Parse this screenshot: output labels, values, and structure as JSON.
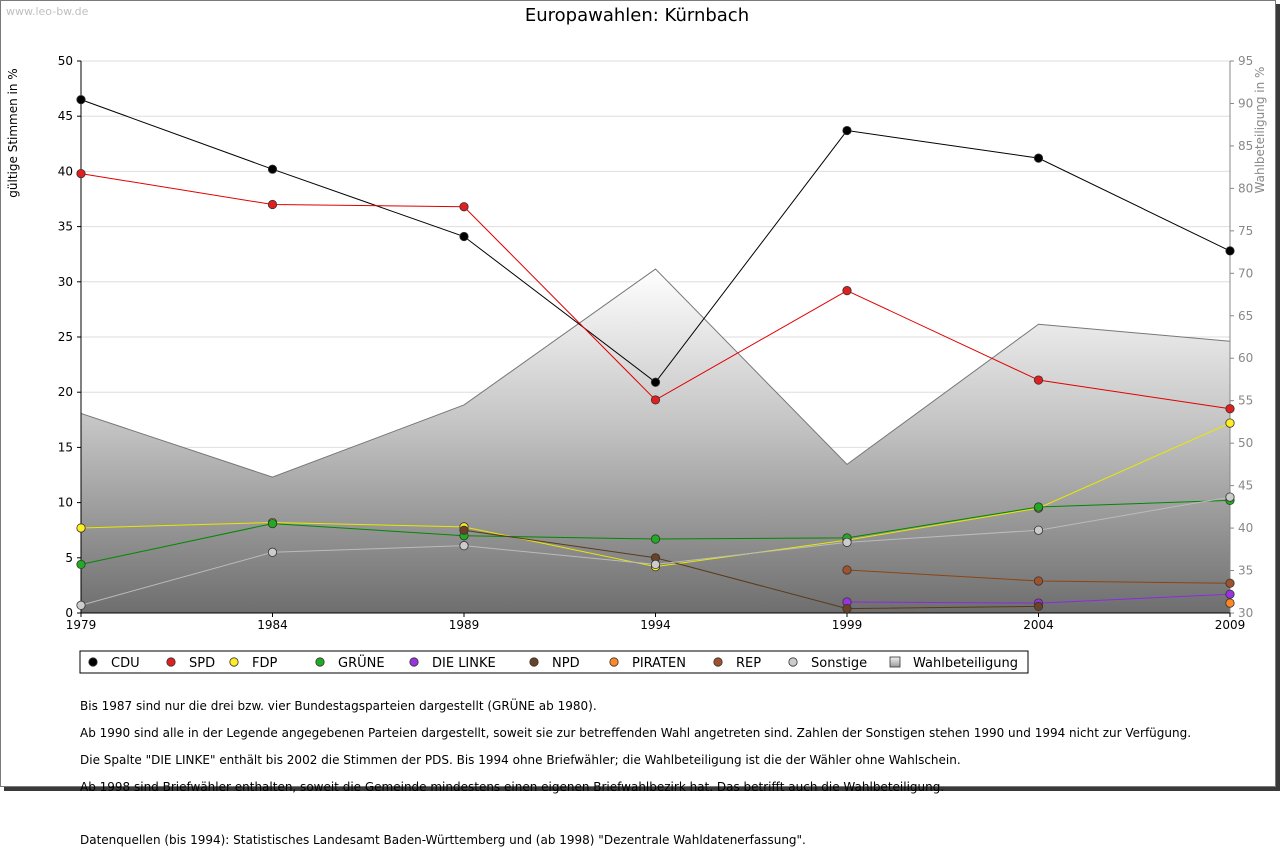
{
  "watermark": "www.leo-bw.de",
  "chart_data": {
    "type": "line",
    "title": "Europawahlen: Kürnbach",
    "ylabel": "gültige Stimmen in %",
    "y2label": "Wahlbeteiligung in %",
    "xlabel": "",
    "x": [
      1979,
      1984,
      1989,
      1994,
      1999,
      2004,
      2009
    ],
    "x_tick_labels": [
      "1979",
      "1984",
      "1989",
      "1994",
      "1999",
      "2004",
      "2009"
    ],
    "ylim": [
      0,
      50
    ],
    "y_ticks": [
      0,
      5,
      10,
      15,
      20,
      25,
      30,
      35,
      40,
      45,
      50
    ],
    "y2lim": [
      30,
      95
    ],
    "y2_ticks": [
      30,
      35,
      40,
      45,
      50,
      55,
      60,
      65,
      70,
      75,
      80,
      85,
      90,
      95
    ],
    "grid": true,
    "legend_position": "bottom",
    "series": [
      {
        "name": "CDU",
        "axis": "left",
        "color": "#000000",
        "marker_color": "#000000",
        "values": [
          46.5,
          40.2,
          34.1,
          20.9,
          43.7,
          41.2,
          32.8
        ]
      },
      {
        "name": "SPD",
        "axis": "left",
        "color": "#e00000",
        "marker_color": "#e02020",
        "values": [
          39.8,
          37.0,
          36.8,
          19.3,
          29.2,
          21.1,
          18.5
        ]
      },
      {
        "name": "FDP",
        "axis": "left",
        "color": "#e8e800",
        "marker_color": "#ffee22",
        "values": [
          7.7,
          8.2,
          7.8,
          4.2,
          6.6,
          9.5,
          17.2
        ]
      },
      {
        "name": "GRÜNE",
        "axis": "left",
        "color": "#008800",
        "marker_color": "#22aa22",
        "values": [
          4.4,
          8.1,
          7.0,
          6.7,
          6.8,
          9.6,
          10.2
        ]
      },
      {
        "name": "DIE LINKE",
        "axis": "left",
        "color": "#8a2be2",
        "marker_color": "#9933dd",
        "values": [
          null,
          null,
          null,
          null,
          1.0,
          0.9,
          1.7
        ]
      },
      {
        "name": "NPD",
        "axis": "left",
        "color": "#5a3a1a",
        "marker_color": "#6b4226",
        "values": [
          null,
          null,
          7.5,
          5.0,
          0.4,
          0.6,
          null
        ]
      },
      {
        "name": "PIRATEN",
        "axis": "left",
        "color": "#ff8800",
        "marker_color": "#ff8822",
        "values": [
          null,
          null,
          null,
          null,
          null,
          null,
          0.9
        ]
      },
      {
        "name": "REP",
        "axis": "left",
        "color": "#8b4513",
        "marker_color": "#a0522d",
        "values": [
          null,
          null,
          null,
          null,
          3.9,
          2.9,
          2.7
        ]
      },
      {
        "name": "Sonstige",
        "axis": "left",
        "color": "#bbbbbb",
        "marker_color": "#cccccc",
        "values": [
          0.7,
          5.5,
          6.1,
          4.4,
          6.4,
          7.5,
          10.5
        ]
      },
      {
        "name": "Wahlbeteiligung",
        "axis": "right",
        "type": "area",
        "color": "#777777",
        "marker_color": "#dddddd",
        "values": [
          53.5,
          46.0,
          54.5,
          70.5,
          47.5,
          64.0,
          62.0
        ]
      }
    ]
  },
  "notes": [
    "Bis 1987 sind nur die drei bzw. vier Bundestagsparteien dargestellt (GRÜNE ab 1980).",
    "Ab 1990 sind alle in der Legende angegebenen Parteien dargestellt, soweit sie zur betreffenden Wahl angetreten sind. Zahlen der Sonstigen stehen 1990 und 1994 nicht zur Verfügung.",
    "Die Spalte \"DIE LINKE\" enthält bis 2002 die Stimmen der PDS. Bis 1994 ohne Briefwähler; die Wahlbeteiligung ist die der Wähler ohne Wahlschein.",
    "Ab 1998 sind Briefwähler enthalten, soweit die Gemeinde mindestens einen eigenen Briefwahlbezirk hat. Das betrifft auch die Wahlbeteiligung."
  ],
  "sources": "Datenquellen (bis 1994): Statistisches Landesamt Baden-Württemberg und (ab 1998) \"Dezentrale Wahldatenerfassung\"."
}
